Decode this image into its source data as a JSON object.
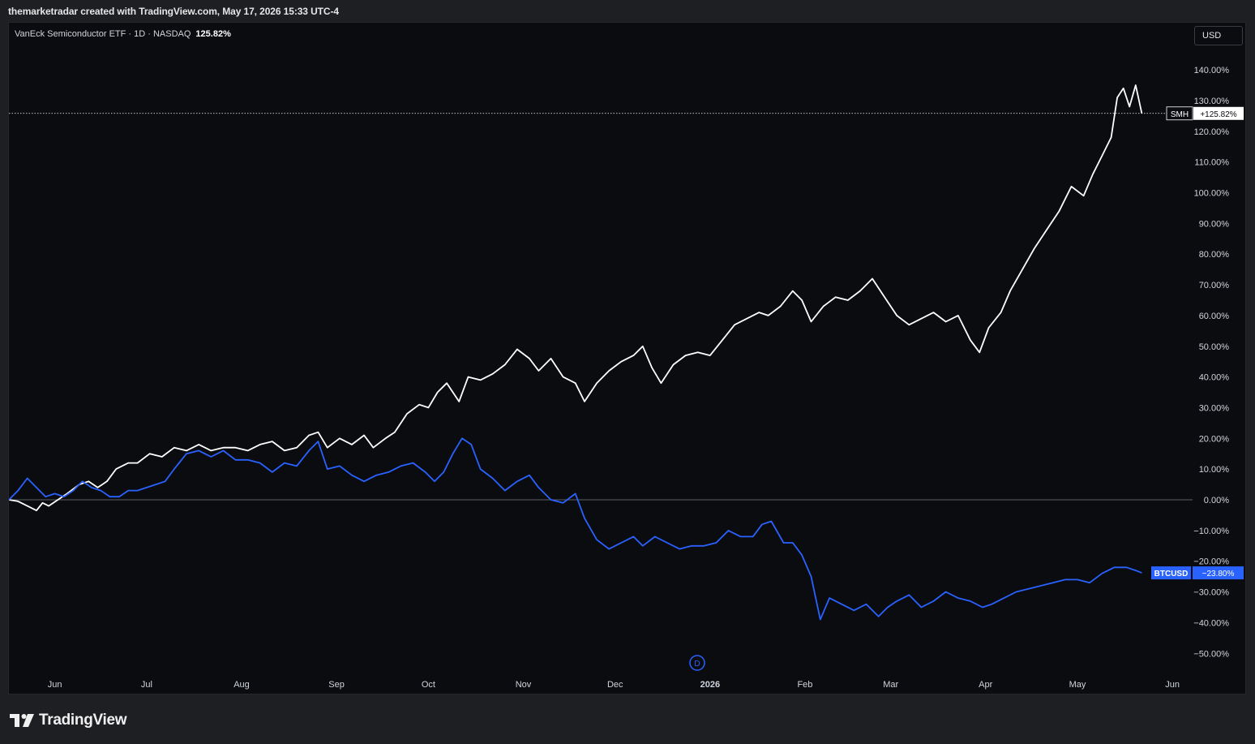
{
  "header": {
    "caption": "themarketradar created with TradingView.com, May 17, 2026 15:33 UTC-4"
  },
  "legend": {
    "symbol_info": "VanEck Semiconductor ETF · 1D · NASDAQ",
    "value": "125.82%"
  },
  "currency_button": "USD",
  "footer": {
    "brand": "TradingView"
  },
  "colors": {
    "smh": "#ffffff",
    "btc": "#2962ff",
    "background": "#0b0c10",
    "zero_line": "#787b86"
  },
  "chart_data": {
    "type": "line",
    "y_unit": "%",
    "y_ticks": [
      "140.00%",
      "130.00%",
      "120.00%",
      "110.00%",
      "100.00%",
      "90.00%",
      "80.00%",
      "70.00%",
      "60.00%",
      "50.00%",
      "40.00%",
      "30.00%",
      "20.00%",
      "10.00%",
      "0.00%",
      "−10.00%",
      "−20.00%",
      "−30.00%",
      "−40.00%",
      "−50.00%"
    ],
    "y_tick_values": [
      140,
      130,
      120,
      110,
      100,
      90,
      80,
      70,
      60,
      50,
      40,
      30,
      20,
      10,
      0,
      -10,
      -20,
      -30,
      -40,
      -50
    ],
    "x_ticks": [
      "Jun",
      "Jul",
      "Aug",
      "Sep",
      "Oct",
      "Nov",
      "Dec",
      "2026",
      "Feb",
      "Mar",
      "Apr",
      "May",
      "Jun"
    ],
    "x_tick_dates": [
      "2025-06-01",
      "2025-07-01",
      "2025-08-01",
      "2025-09-01",
      "2025-10-01",
      "2025-11-01",
      "2025-12-01",
      "2026-01-01",
      "2026-02-01",
      "2026-03-01",
      "2026-04-01",
      "2026-05-01",
      "2026-06-01"
    ],
    "x_range": [
      "2025-05-17",
      "2026-06-06"
    ],
    "ylim": [
      -55,
      148
    ],
    "series": [
      {
        "name": "SMH",
        "color": "#ffffff",
        "last_label": "+125.82%",
        "last_value": 125.82,
        "points": [
          [
            "2025-05-17",
            0
          ],
          [
            "2025-05-20",
            -0.5
          ],
          [
            "2025-05-23",
            -2
          ],
          [
            "2025-05-26",
            -3.5
          ],
          [
            "2025-05-28",
            -1
          ],
          [
            "2025-05-30",
            -2
          ],
          [
            "2025-06-02",
            0
          ],
          [
            "2025-06-05",
            2
          ],
          [
            "2025-06-09",
            5
          ],
          [
            "2025-06-12",
            6
          ],
          [
            "2025-06-15",
            4
          ],
          [
            "2025-06-18",
            6
          ],
          [
            "2025-06-21",
            10
          ],
          [
            "2025-06-25",
            12
          ],
          [
            "2025-06-28",
            12
          ],
          [
            "2025-07-02",
            15
          ],
          [
            "2025-07-06",
            14
          ],
          [
            "2025-07-10",
            17
          ],
          [
            "2025-07-14",
            16
          ],
          [
            "2025-07-18",
            18
          ],
          [
            "2025-07-22",
            16
          ],
          [
            "2025-07-26",
            17
          ],
          [
            "2025-07-30",
            17
          ],
          [
            "2025-08-03",
            16
          ],
          [
            "2025-08-07",
            18
          ],
          [
            "2025-08-11",
            19
          ],
          [
            "2025-08-15",
            16
          ],
          [
            "2025-08-19",
            17
          ],
          [
            "2025-08-23",
            21
          ],
          [
            "2025-08-26",
            22
          ],
          [
            "2025-08-29",
            17
          ],
          [
            "2025-09-02",
            20
          ],
          [
            "2025-09-06",
            18
          ],
          [
            "2025-09-10",
            21
          ],
          [
            "2025-09-13",
            17
          ],
          [
            "2025-09-17",
            20
          ],
          [
            "2025-09-20",
            22
          ],
          [
            "2025-09-24",
            28
          ],
          [
            "2025-09-28",
            31
          ],
          [
            "2025-10-01",
            30
          ],
          [
            "2025-10-04",
            35
          ],
          [
            "2025-10-07",
            38
          ],
          [
            "2025-10-11",
            32
          ],
          [
            "2025-10-14",
            40
          ],
          [
            "2025-10-18",
            39
          ],
          [
            "2025-10-22",
            41
          ],
          [
            "2025-10-26",
            44
          ],
          [
            "2025-10-30",
            49
          ],
          [
            "2025-11-03",
            46
          ],
          [
            "2025-11-06",
            42
          ],
          [
            "2025-11-10",
            46
          ],
          [
            "2025-11-14",
            40
          ],
          [
            "2025-11-18",
            38
          ],
          [
            "2025-11-21",
            32
          ],
          [
            "2025-11-25",
            38
          ],
          [
            "2025-11-29",
            42
          ],
          [
            "2025-12-03",
            45
          ],
          [
            "2025-12-07",
            47
          ],
          [
            "2025-12-10",
            50
          ],
          [
            "2025-12-13",
            43
          ],
          [
            "2025-12-16",
            38
          ],
          [
            "2025-12-20",
            44
          ],
          [
            "2025-12-24",
            47
          ],
          [
            "2025-12-28",
            48
          ],
          [
            "2026-01-01",
            47
          ],
          [
            "2026-01-05",
            52
          ],
          [
            "2026-01-09",
            57
          ],
          [
            "2026-01-13",
            59
          ],
          [
            "2026-01-17",
            61
          ],
          [
            "2026-01-20",
            60
          ],
          [
            "2026-01-24",
            63
          ],
          [
            "2026-01-28",
            68
          ],
          [
            "2026-01-31",
            65
          ],
          [
            "2026-02-03",
            58
          ],
          [
            "2026-02-07",
            63
          ],
          [
            "2026-02-11",
            66
          ],
          [
            "2026-02-15",
            65
          ],
          [
            "2026-02-19",
            68
          ],
          [
            "2026-02-23",
            72
          ],
          [
            "2026-02-27",
            66
          ],
          [
            "2026-03-03",
            60
          ],
          [
            "2026-03-07",
            57
          ],
          [
            "2026-03-11",
            59
          ],
          [
            "2026-03-15",
            61
          ],
          [
            "2026-03-19",
            58
          ],
          [
            "2026-03-23",
            60
          ],
          [
            "2026-03-27",
            52
          ],
          [
            "2026-03-30",
            48
          ],
          [
            "2026-04-02",
            56
          ],
          [
            "2026-04-06",
            61
          ],
          [
            "2026-04-09",
            68
          ],
          [
            "2026-04-13",
            75
          ],
          [
            "2026-04-17",
            82
          ],
          [
            "2026-04-21",
            88
          ],
          [
            "2026-04-25",
            94
          ],
          [
            "2026-04-29",
            102
          ],
          [
            "2026-05-03",
            99
          ],
          [
            "2026-05-06",
            106
          ],
          [
            "2026-05-09",
            112
          ],
          [
            "2026-05-12",
            118
          ],
          [
            "2026-05-14",
            131
          ],
          [
            "2026-05-16",
            134
          ],
          [
            "2026-05-18",
            128
          ],
          [
            "2026-05-20",
            135
          ],
          [
            "2026-05-22",
            125.82
          ]
        ]
      },
      {
        "name": "BTCUSD",
        "color": "#2962ff",
        "last_label": "−23.80%",
        "last_value": -23.8,
        "points": [
          [
            "2025-05-17",
            0
          ],
          [
            "2025-05-20",
            3
          ],
          [
            "2025-05-23",
            7
          ],
          [
            "2025-05-26",
            4
          ],
          [
            "2025-05-29",
            1
          ],
          [
            "2025-06-01",
            2
          ],
          [
            "2025-06-04",
            1
          ],
          [
            "2025-06-07",
            3
          ],
          [
            "2025-06-10",
            6
          ],
          [
            "2025-06-13",
            4
          ],
          [
            "2025-06-16",
            3
          ],
          [
            "2025-06-19",
            1
          ],
          [
            "2025-06-22",
            1
          ],
          [
            "2025-06-25",
            3
          ],
          [
            "2025-06-28",
            3
          ],
          [
            "2025-07-01",
            4
          ],
          [
            "2025-07-04",
            5
          ],
          [
            "2025-07-07",
            6
          ],
          [
            "2025-07-10",
            10
          ],
          [
            "2025-07-14",
            15
          ],
          [
            "2025-07-18",
            16
          ],
          [
            "2025-07-22",
            14
          ],
          [
            "2025-07-26",
            16
          ],
          [
            "2025-07-30",
            13
          ],
          [
            "2025-08-03",
            13
          ],
          [
            "2025-08-07",
            12
          ],
          [
            "2025-08-11",
            9
          ],
          [
            "2025-08-15",
            12
          ],
          [
            "2025-08-19",
            11
          ],
          [
            "2025-08-23",
            16
          ],
          [
            "2025-08-26",
            19
          ],
          [
            "2025-08-29",
            10
          ],
          [
            "2025-09-02",
            11
          ],
          [
            "2025-09-06",
            8
          ],
          [
            "2025-09-10",
            6
          ],
          [
            "2025-09-14",
            8
          ],
          [
            "2025-09-18",
            9
          ],
          [
            "2025-09-22",
            11
          ],
          [
            "2025-09-26",
            12
          ],
          [
            "2025-09-30",
            9
          ],
          [
            "2025-10-03",
            6
          ],
          [
            "2025-10-06",
            9
          ],
          [
            "2025-10-09",
            15
          ],
          [
            "2025-10-12",
            20
          ],
          [
            "2025-10-15",
            18
          ],
          [
            "2025-10-18",
            10
          ],
          [
            "2025-10-22",
            7
          ],
          [
            "2025-10-26",
            3
          ],
          [
            "2025-10-30",
            6
          ],
          [
            "2025-11-03",
            8
          ],
          [
            "2025-11-06",
            4
          ],
          [
            "2025-11-10",
            0
          ],
          [
            "2025-11-14",
            -1
          ],
          [
            "2025-11-18",
            2
          ],
          [
            "2025-11-21",
            -6
          ],
          [
            "2025-11-25",
            -13
          ],
          [
            "2025-11-29",
            -16
          ],
          [
            "2025-12-03",
            -14
          ],
          [
            "2025-12-07",
            -12
          ],
          [
            "2025-12-10",
            -15
          ],
          [
            "2025-12-14",
            -12
          ],
          [
            "2025-12-18",
            -14
          ],
          [
            "2025-12-22",
            -16
          ],
          [
            "2025-12-26",
            -15
          ],
          [
            "2025-12-30",
            -15
          ],
          [
            "2026-01-03",
            -14
          ],
          [
            "2026-01-07",
            -10
          ],
          [
            "2026-01-11",
            -12
          ],
          [
            "2026-01-15",
            -12
          ],
          [
            "2026-01-18",
            -8
          ],
          [
            "2026-01-21",
            -7
          ],
          [
            "2026-01-25",
            -14
          ],
          [
            "2026-01-28",
            -14
          ],
          [
            "2026-01-31",
            -18
          ],
          [
            "2026-02-03",
            -25
          ],
          [
            "2026-02-06",
            -39
          ],
          [
            "2026-02-09",
            -32
          ],
          [
            "2026-02-13",
            -34
          ],
          [
            "2026-02-17",
            -36
          ],
          [
            "2026-02-21",
            -34
          ],
          [
            "2026-02-25",
            -38
          ],
          [
            "2026-02-28",
            -35
          ],
          [
            "2026-03-03",
            -33
          ],
          [
            "2026-03-07",
            -31
          ],
          [
            "2026-03-11",
            -35
          ],
          [
            "2026-03-15",
            -33
          ],
          [
            "2026-03-19",
            -30
          ],
          [
            "2026-03-23",
            -32
          ],
          [
            "2026-03-27",
            -33
          ],
          [
            "2026-03-31",
            -35
          ],
          [
            "2026-04-03",
            -34
          ],
          [
            "2026-04-07",
            -32
          ],
          [
            "2026-04-11",
            -30
          ],
          [
            "2026-04-15",
            -29
          ],
          [
            "2026-04-19",
            -28
          ],
          [
            "2026-04-23",
            -27
          ],
          [
            "2026-04-27",
            -26
          ],
          [
            "2026-05-01",
            -26
          ],
          [
            "2026-05-05",
            -27
          ],
          [
            "2026-05-09",
            -24
          ],
          [
            "2026-05-13",
            -22
          ],
          [
            "2026-05-17",
            -22
          ],
          [
            "2026-05-20",
            -23
          ],
          [
            "2026-05-22",
            -23.8
          ]
        ]
      }
    ],
    "grid": false,
    "legend_position": "top-left"
  }
}
